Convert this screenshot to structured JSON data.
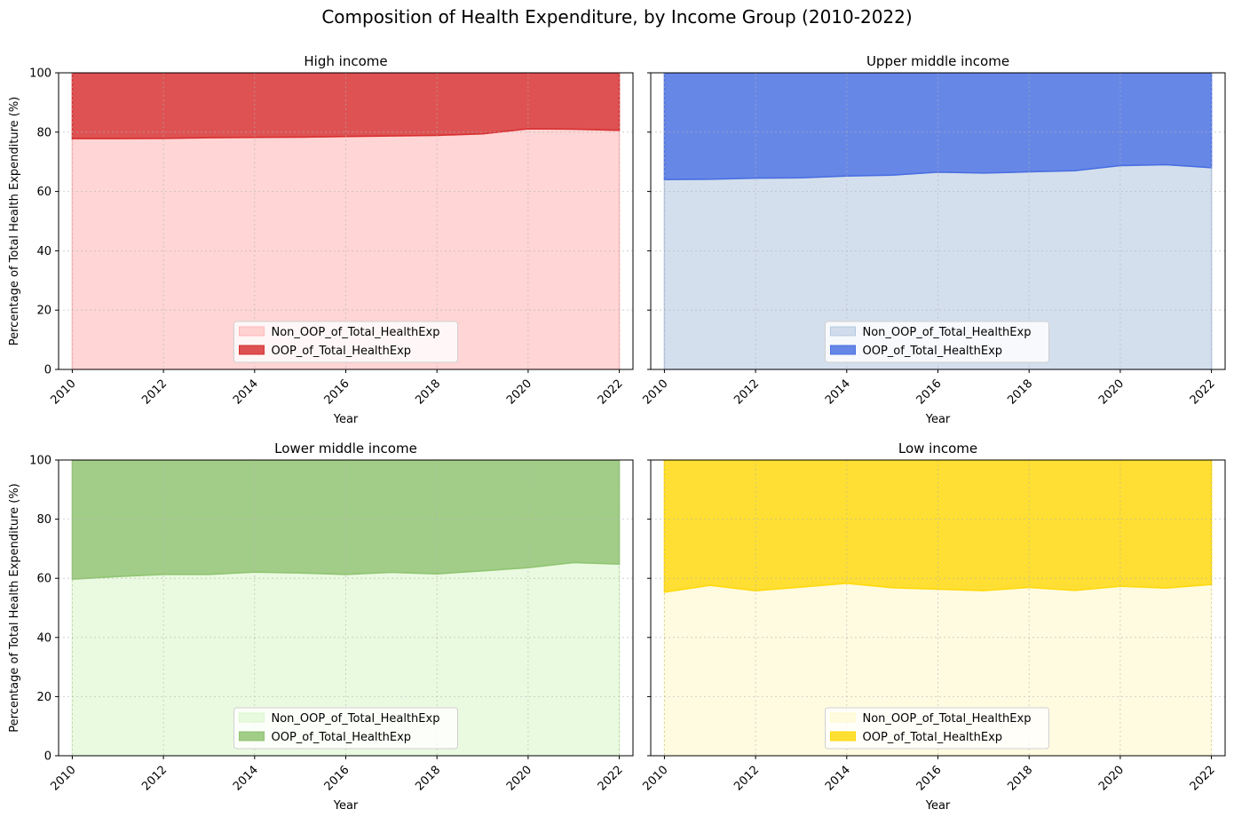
{
  "figure": {
    "title": "Composition of Health Expenditure, by Income Group (2010-2022)"
  },
  "chart_data": [
    {
      "type": "area",
      "stacked": true,
      "title": "High income",
      "xlabel": "Year",
      "ylabel": "Percentage of Total Health Expenditure (%)",
      "xlim": [
        2009.7,
        2022.3
      ],
      "ylim": [
        0,
        100
      ],
      "xticks": [
        2010,
        2012,
        2014,
        2016,
        2018,
        2020,
        2022
      ],
      "yticks": [
        0,
        20,
        40,
        60,
        80,
        100
      ],
      "grid": true,
      "legend_position": "lower center",
      "x": [
        2010,
        2011,
        2012,
        2013,
        2014,
        2015,
        2016,
        2017,
        2018,
        2019,
        2020,
        2021,
        2022
      ],
      "series": [
        {
          "name": "Non_OOP_of_Total_HealthExp",
          "color": "#ffb3b3",
          "values": [
            77.8,
            77.8,
            77.9,
            78.1,
            78.2,
            78.3,
            78.5,
            78.7,
            78.9,
            79.4,
            81.1,
            81.0,
            80.6
          ]
        },
        {
          "name": "OOP_of_Total_HealthExp",
          "color": "#d62728",
          "values": [
            22.2,
            22.2,
            22.1,
            21.9,
            21.8,
            21.7,
            21.5,
            21.3,
            21.1,
            20.6,
            18.9,
            19.0,
            19.4
          ]
        }
      ]
    },
    {
      "type": "area",
      "stacked": true,
      "title": "Upper middle income",
      "xlabel": "Year",
      "ylabel": "",
      "xlim": [
        2009.7,
        2022.3
      ],
      "ylim": [
        0,
        100
      ],
      "xticks": [
        2010,
        2012,
        2014,
        2016,
        2018,
        2020,
        2022
      ],
      "yticks": [
        0,
        20,
        40,
        60,
        80,
        100
      ],
      "grid": true,
      "legend_position": "lower center",
      "x": [
        2010,
        2011,
        2012,
        2013,
        2014,
        2015,
        2016,
        2017,
        2018,
        2019,
        2020,
        2021,
        2022
      ],
      "series": [
        {
          "name": "Non_OOP_of_Total_HealthExp",
          "color": "#b0c4de",
          "values": [
            64.0,
            64.1,
            64.5,
            64.6,
            65.2,
            65.5,
            66.5,
            66.2,
            66.6,
            67.0,
            68.7,
            69.0,
            68.0
          ]
        },
        {
          "name": "OOP_of_Total_HealthExp",
          "color": "#4169e1",
          "values": [
            36.0,
            35.9,
            35.5,
            35.4,
            34.8,
            34.5,
            33.5,
            33.8,
            33.4,
            33.0,
            31.3,
            31.0,
            32.0
          ]
        }
      ]
    },
    {
      "type": "area",
      "stacked": true,
      "title": "Lower middle income",
      "xlabel": "Year",
      "ylabel": "Percentage of Total Health Expenditure (%)",
      "xlim": [
        2009.7,
        2022.3
      ],
      "ylim": [
        0,
        100
      ],
      "xticks": [
        2010,
        2012,
        2014,
        2016,
        2018,
        2020,
        2022
      ],
      "yticks": [
        0,
        20,
        40,
        60,
        80,
        100
      ],
      "grid": true,
      "legend_position": "lower center",
      "x": [
        2010,
        2011,
        2012,
        2013,
        2014,
        2015,
        2016,
        2017,
        2018,
        2019,
        2020,
        2021,
        2022
      ],
      "series": [
        {
          "name": "Non_OOP_of_Total_HealthExp",
          "color": "#d8f5c8",
          "values": [
            59.7,
            60.6,
            61.3,
            61.3,
            62.1,
            61.8,
            61.3,
            62.0,
            61.5,
            62.5,
            63.6,
            65.3,
            64.8
          ]
        },
        {
          "name": "OOP_of_Total_HealthExp",
          "color": "#8bc16a",
          "values": [
            40.3,
            39.4,
            38.7,
            38.7,
            37.9,
            38.2,
            38.7,
            38.0,
            38.5,
            37.5,
            36.4,
            34.7,
            35.2
          ]
        }
      ]
    },
    {
      "type": "area",
      "stacked": true,
      "title": "Low income",
      "xlabel": "Year",
      "ylabel": "",
      "xlim": [
        2009.7,
        2022.3
      ],
      "ylim": [
        0,
        100
      ],
      "xticks": [
        2010,
        2012,
        2014,
        2016,
        2018,
        2020,
        2022
      ],
      "yticks": [
        0,
        20,
        40,
        60,
        80,
        100
      ],
      "grid": true,
      "legend_position": "lower center",
      "x": [
        2010,
        2011,
        2012,
        2013,
        2014,
        2015,
        2016,
        2017,
        2018,
        2019,
        2020,
        2021,
        2022
      ],
      "series": [
        {
          "name": "Non_OOP_of_Total_HealthExp",
          "color": "#fff8c8",
          "values": [
            55.3,
            57.6,
            55.8,
            57.0,
            58.3,
            56.8,
            56.3,
            55.8,
            56.9,
            55.9,
            57.3,
            56.7,
            57.9
          ]
        },
        {
          "name": "OOP_of_Total_HealthExp",
          "color": "#ffd700",
          "values": [
            44.7,
            42.4,
            44.2,
            43.0,
            41.7,
            43.2,
            43.7,
            44.2,
            43.1,
            44.1,
            42.7,
            43.3,
            42.1
          ]
        }
      ]
    }
  ]
}
